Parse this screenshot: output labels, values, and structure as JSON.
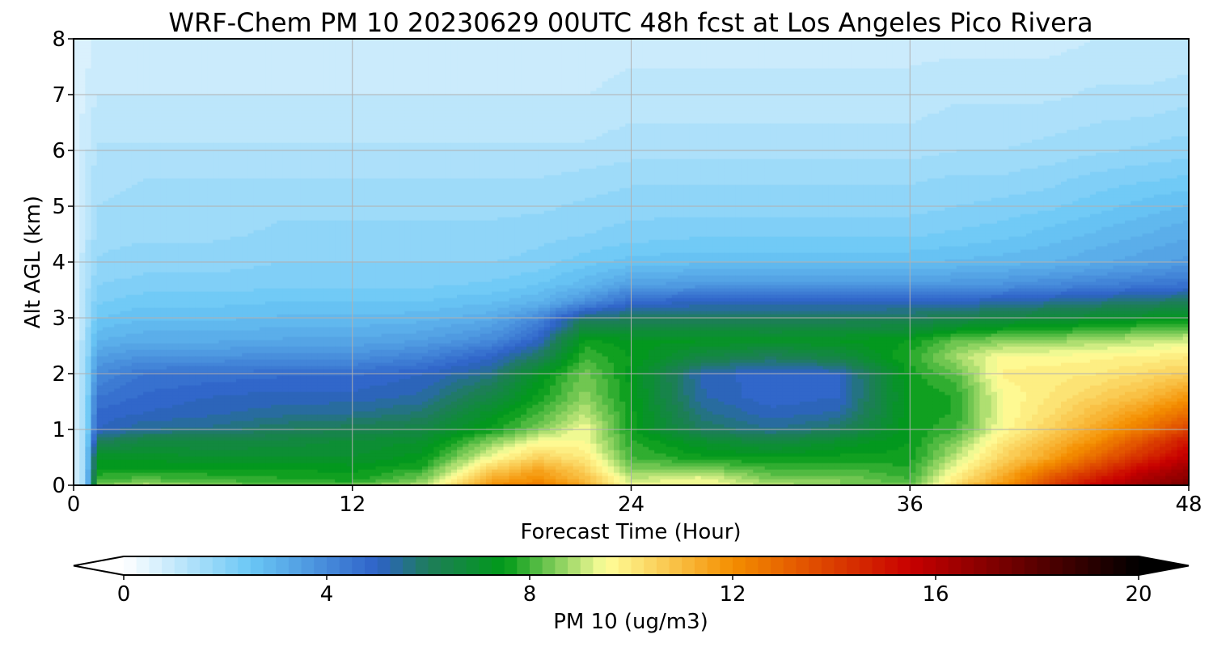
{
  "chart_data": {
    "type": "heatmap",
    "title": "WRF-Chem PM 10  20230629 00UTC 48h fcst at Los Angeles Pico Rivera",
    "xlabel": "Forecast Time (Hour)",
    "ylabel": "Alt AGL (km)",
    "xlim": [
      0,
      48
    ],
    "ylim": [
      0,
      8
    ],
    "x_ticks": [
      "0",
      "12",
      "24",
      "36",
      "48"
    ],
    "y_ticks": [
      "0",
      "1",
      "2",
      "3",
      "4",
      "5",
      "6",
      "7",
      "8"
    ],
    "grid": true,
    "colorbar": {
      "label": "PM 10  (ug/m3)",
      "range": [
        0,
        20
      ],
      "ticks": [
        "0",
        "4",
        "8",
        "12",
        "16",
        "20"
      ],
      "extend": "both",
      "levels": 80,
      "colors": [
        {
          "v": 0,
          "c": "#ffffff"
        },
        {
          "v": 2.5,
          "c": "#6ac7f5"
        },
        {
          "v": 5,
          "c": "#2e62c8"
        },
        {
          "v": 6,
          "c": "#1e7d5a"
        },
        {
          "v": 7.5,
          "c": "#009a18"
        },
        {
          "v": 9.5,
          "c": "#ffff9a"
        },
        {
          "v": 12,
          "c": "#f48e00"
        },
        {
          "v": 15.5,
          "c": "#c80000"
        },
        {
          "v": 20,
          "c": "#000000"
        }
      ]
    },
    "times": [
      0,
      0.5,
      1,
      3,
      6,
      9,
      12,
      15,
      18,
      20,
      22,
      24,
      27,
      30,
      33,
      36,
      38,
      40,
      42,
      44,
      46,
      48
    ],
    "altitudes": [
      0,
      0.1,
      0.3,
      0.5,
      0.8,
      1.0,
      1.3,
      1.6,
      2.0,
      2.3,
      2.6,
      3.0,
      3.3,
      3.6,
      4.0,
      4.5,
      5.0,
      5.5,
      6.0,
      7.0,
      8.0
    ],
    "values": [
      [
        0.5,
        0.5,
        0.5,
        0.5,
        0.5,
        0.5,
        0.5,
        0.5,
        0.5,
        0.5,
        0.5,
        0.5,
        0.5,
        0.5,
        0.5,
        0.5,
        0.5,
        0.5,
        0.5,
        0.5,
        0.5
      ],
      [
        1.5,
        1.5,
        1.5,
        1.5,
        1.5,
        1.5,
        1.5,
        1.5,
        1.5,
        1.5,
        1.5,
        1.4,
        1.4,
        1.3,
        1.2,
        1.1,
        1.0,
        1.0,
        0.9,
        0.8,
        0.6
      ],
      [
        8.5,
        8.0,
        7.5,
        7.2,
        6.0,
        5.0,
        4.8,
        4.5,
        4.0,
        3.5,
        3.0,
        2.5,
        2.2,
        2.0,
        1.8,
        1.6,
        1.5,
        1.4,
        1.3,
        1.0,
        0.8
      ],
      [
        9.0,
        8.2,
        7.5,
        7.2,
        6.5,
        5.5,
        5.0,
        4.8,
        4.5,
        3.8,
        3.2,
        2.7,
        2.4,
        2.1,
        1.9,
        1.7,
        1.6,
        1.5,
        1.3,
        1.0,
        0.8
      ],
      [
        8.5,
        8.0,
        7.5,
        7.0,
        6.5,
        5.6,
        5.2,
        5.0,
        4.6,
        3.8,
        3.2,
        2.7,
        2.4,
        2.1,
        1.9,
        1.7,
        1.6,
        1.5,
        1.3,
        1.0,
        0.8
      ],
      [
        8.2,
        7.8,
        7.5,
        7.0,
        6.6,
        6.0,
        5.4,
        5.1,
        4.7,
        3.9,
        3.3,
        2.8,
        2.5,
        2.2,
        2.0,
        1.8,
        1.7,
        1.5,
        1.3,
        1.0,
        0.8
      ],
      [
        8.5,
        7.6,
        7.4,
        7.0,
        6.8,
        6.2,
        5.5,
        5.1,
        4.7,
        3.9,
        3.3,
        2.8,
        2.5,
        2.2,
        2.0,
        1.8,
        1.7,
        1.5,
        1.3,
        1.0,
        0.8
      ],
      [
        9.0,
        8.5,
        7.8,
        7.4,
        7.0,
        6.5,
        5.8,
        5.3,
        5.0,
        4.2,
        3.5,
        2.9,
        2.5,
        2.2,
        2.0,
        1.8,
        1.7,
        1.5,
        1.3,
        1.0,
        0.8
      ],
      [
        12.0,
        11.5,
        10.5,
        9.5,
        8.5,
        7.6,
        7.2,
        6.5,
        5.6,
        5.0,
        4.0,
        3.2,
        2.7,
        2.3,
        2.0,
        1.8,
        1.7,
        1.5,
        1.3,
        1.0,
        0.8
      ],
      [
        12.5,
        12.0,
        11.5,
        10.5,
        9.5,
        8.5,
        8.0,
        7.6,
        7.2,
        6.0,
        5.0,
        4.0,
        3.0,
        2.5,
        2.1,
        1.9,
        1.7,
        1.5,
        1.3,
        1.0,
        0.8
      ],
      [
        11.5,
        11.0,
        10.5,
        10.0,
        9.5,
        9.5,
        9.0,
        8.6,
        8.4,
        8.0,
        7.6,
        5.8,
        3.8,
        2.9,
        2.4,
        2.0,
        1.8,
        1.6,
        1.3,
        1.0,
        0.8
      ],
      [
        9.5,
        9.0,
        8.5,
        8.0,
        7.8,
        7.6,
        7.6,
        7.5,
        7.4,
        7.5,
        7.3,
        6.0,
        4.8,
        3.5,
        2.6,
        2.1,
        1.9,
        1.7,
        1.4,
        1.1,
        0.9
      ],
      [
        9.5,
        9.5,
        8.5,
        7.6,
        7.0,
        6.0,
        5.6,
        5.3,
        5.2,
        6.5,
        7.3,
        6.0,
        5.0,
        3.6,
        2.7,
        2.2,
        1.9,
        1.7,
        1.4,
        1.1,
        0.9
      ],
      [
        9.0,
        8.5,
        8.0,
        7.5,
        6.5,
        5.5,
        5.1,
        4.8,
        4.8,
        6.0,
        7.2,
        6.0,
        5.0,
        3.6,
        2.7,
        2.2,
        1.9,
        1.7,
        1.4,
        1.1,
        0.9
      ],
      [
        8.5,
        8.5,
        8.0,
        7.6,
        7.0,
        6.0,
        5.3,
        5.0,
        5.0,
        6.5,
        7.3,
        6.0,
        5.0,
        3.6,
        2.7,
        2.2,
        1.9,
        1.7,
        1.4,
        1.1,
        0.9
      ],
      [
        8.5,
        8.0,
        7.8,
        7.6,
        7.5,
        7.5,
        7.5,
        7.5,
        7.6,
        7.8,
        7.5,
        6.1,
        5.0,
        3.6,
        2.7,
        2.2,
        1.9,
        1.7,
        1.4,
        1.1,
        0.9
      ],
      [
        10.5,
        10.0,
        9.5,
        9.0,
        8.5,
        8.0,
        7.8,
        7.8,
        8.2,
        8.8,
        8.3,
        6.3,
        5.1,
        3.7,
        2.8,
        2.3,
        2.0,
        1.8,
        1.5,
        1.2,
        0.9
      ],
      [
        12.0,
        11.5,
        11.0,
        10.5,
        10.0,
        9.6,
        9.5,
        9.5,
        9.8,
        9.6,
        8.5,
        6.6,
        5.2,
        3.8,
        2.9,
        2.4,
        2.1,
        1.8,
        1.5,
        1.2,
        0.9
      ],
      [
        14.0,
        13.5,
        12.5,
        11.5,
        11.0,
        10.5,
        10.2,
        10.0,
        9.9,
        9.6,
        8.6,
        6.8,
        5.4,
        4.0,
        3.0,
        2.6,
        2.2,
        1.9,
        1.6,
        1.2,
        0.9
      ],
      [
        15.5,
        15.0,
        14.0,
        13.0,
        12.0,
        11.5,
        11.0,
        10.5,
        10.0,
        9.7,
        8.8,
        7.0,
        5.6,
        4.2,
        3.2,
        2.8,
        2.4,
        2.1,
        1.7,
        1.3,
        1.0
      ],
      [
        16.5,
        16.2,
        15.5,
        14.5,
        13.5,
        12.5,
        11.8,
        11.0,
        10.3,
        9.8,
        9.0,
        7.2,
        5.8,
        4.4,
        3.4,
        3.0,
        2.6,
        2.2,
        1.8,
        1.3,
        1.0
      ],
      [
        17.5,
        17.0,
        16.5,
        15.8,
        15.0,
        14.0,
        12.8,
        11.8,
        10.6,
        10.0,
        9.2,
        7.4,
        6.0,
        4.6,
        3.6,
        3.2,
        2.8,
        2.3,
        1.9,
        1.4,
        1.0
      ]
    ]
  }
}
